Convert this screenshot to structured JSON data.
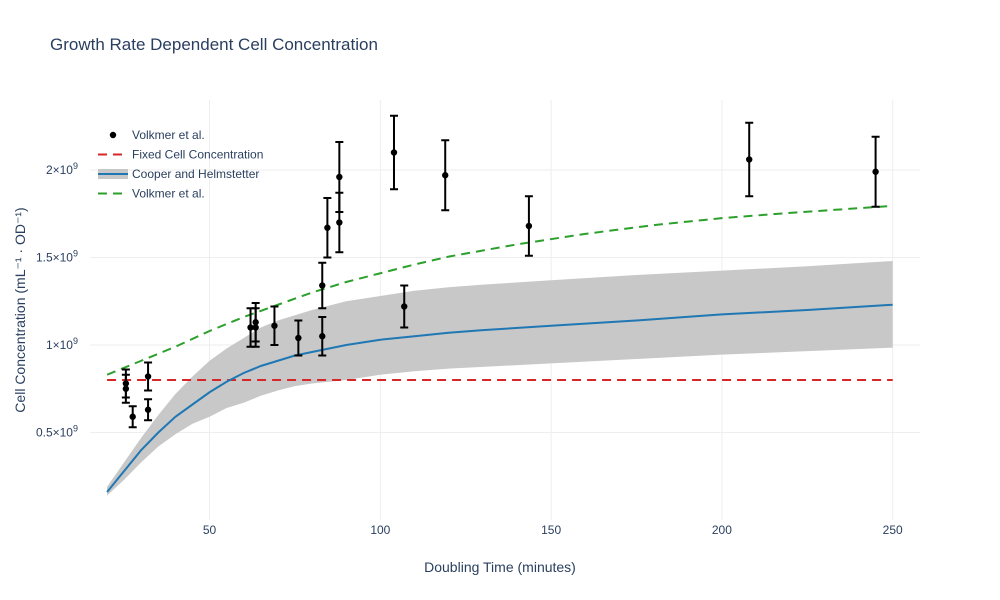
{
  "chart_data": {
    "type": "scatter",
    "title": "Growth Rate Dependent Cell Concentration",
    "xlabel": "Doubling Time (minutes)",
    "ylabel": "Cell Concentration (mL⁻¹ · OD⁻¹)",
    "xlim": [
      15,
      258
    ],
    "ylim": [
      0,
      2400000000.0
    ],
    "grid": true,
    "legend_position": "top-left",
    "x_ticks": [
      {
        "value": 50,
        "label": "50"
      },
      {
        "value": 100,
        "label": "100"
      },
      {
        "value": 150,
        "label": "150"
      },
      {
        "value": 200,
        "label": "200"
      },
      {
        "value": 250,
        "label": "250"
      }
    ],
    "y_ticks": [
      {
        "value": 500000000.0,
        "base": "0.5×10",
        "exp": "9"
      },
      {
        "value": 1000000000.0,
        "base": "1×10",
        "exp": "9"
      },
      {
        "value": 1500000000.0,
        "base": "1.5×10",
        "exp": "9"
      },
      {
        "value": 2000000000.0,
        "base": "2×10",
        "exp": "9"
      }
    ],
    "legend": [
      {
        "label": "Volkmer et al.",
        "kind": "marker"
      },
      {
        "label": "Fixed Cell Concentration",
        "kind": "dash-red"
      },
      {
        "label": "Cooper and Helmstetter",
        "kind": "band"
      },
      {
        "label": "Volkmer et al.",
        "kind": "dash-green"
      }
    ],
    "colors": {
      "markers": "#000000",
      "fixed": "#d62728",
      "cooper_line": "#1f77b4",
      "cooper_band": "#c8c8c8",
      "volkmer_fit": "#2ca02c",
      "grid": "#eeeeee",
      "text": "#2a3f5f"
    },
    "series": [
      {
        "name": "Volkmer et al.",
        "kind": "scatter_errorbars",
        "points": [
          {
            "x": 25.5,
            "y": 750000000.0,
            "err": 80000000.0
          },
          {
            "x": 25.5,
            "y": 780000000.0,
            "err": 80000000.0
          },
          {
            "x": 27.5,
            "y": 590000000.0,
            "err": 60000000.0
          },
          {
            "x": 32.0,
            "y": 630000000.0,
            "err": 60000000.0
          },
          {
            "x": 32.0,
            "y": 820000000.0,
            "err": 80000000.0
          },
          {
            "x": 62.0,
            "y": 1100000000.0,
            "err": 110000000.0
          },
          {
            "x": 63.5,
            "y": 1100000000.0,
            "err": 110000000.0
          },
          {
            "x": 63.5,
            "y": 1130000000.0,
            "err": 110000000.0
          },
          {
            "x": 69.0,
            "y": 1110000000.0,
            "err": 110000000.0
          },
          {
            "x": 76.0,
            "y": 1040000000.0,
            "err": 100000000.0
          },
          {
            "x": 83.0,
            "y": 1050000000.0,
            "err": 110000000.0
          },
          {
            "x": 83.0,
            "y": 1340000000.0,
            "err": 130000000.0
          },
          {
            "x": 84.5,
            "y": 1670000000.0,
            "err": 170000000.0
          },
          {
            "x": 88.0,
            "y": 1700000000.0,
            "err": 170000000.0
          },
          {
            "x": 88.0,
            "y": 1960000000.0,
            "err": 200000000.0
          },
          {
            "x": 104.0,
            "y": 2100000000.0,
            "err": 210000000.0
          },
          {
            "x": 107.0,
            "y": 1220000000.0,
            "err": 120000000.0
          },
          {
            "x": 119.0,
            "y": 1970000000.0,
            "err": 200000000.0
          },
          {
            "x": 143.5,
            "y": 1680000000.0,
            "err": 170000000.0
          },
          {
            "x": 208.0,
            "y": 2060000000.0,
            "err": 210000000.0
          },
          {
            "x": 245.0,
            "y": 1990000000.0,
            "err": 200000000.0
          }
        ]
      },
      {
        "name": "Fixed Cell Concentration",
        "kind": "line",
        "x": [
          20,
          250
        ],
        "y": [
          800000000.0,
          800000000.0
        ]
      },
      {
        "name": "Cooper and Helmstetter",
        "kind": "line_band",
        "x": [
          20,
          25,
          30,
          35,
          40,
          45,
          50,
          55,
          60,
          65,
          70,
          75,
          80,
          90,
          100,
          110,
          120,
          130,
          150,
          175,
          200,
          225,
          250
        ],
        "y": [
          160000000.0,
          280000000.0,
          400000000.0,
          500000000.0,
          590000000.0,
          660000000.0,
          730000000.0,
          790000000.0,
          840000000.0,
          880000000.0,
          910000000.0,
          940000000.0,
          960000000.0,
          1000000000.0,
          1030000000.0,
          1050000000.0,
          1070000000.0,
          1085000000.0,
          1110000000.0,
          1140000000.0,
          1175000000.0,
          1200000000.0,
          1230000000.0
        ],
        "upper": [
          190000000.0,
          330000000.0,
          470000000.0,
          600000000.0,
          720000000.0,
          820000000.0,
          910000000.0,
          980000000.0,
          1040000000.0,
          1100000000.0,
          1140000000.0,
          1170000000.0,
          1200000000.0,
          1250000000.0,
          1280000000.0,
          1310000000.0,
          1330000000.0,
          1345000000.0,
          1370000000.0,
          1400000000.0,
          1425000000.0,
          1450000000.0,
          1480000000.0
        ],
        "lower": [
          140000000.0,
          230000000.0,
          330000000.0,
          420000000.0,
          490000000.0,
          550000000.0,
          590000000.0,
          640000000.0,
          670000000.0,
          710000000.0,
          740000000.0,
          765000000.0,
          780000000.0,
          800000000.0,
          830000000.0,
          850000000.0,
          865000000.0,
          875000000.0,
          895000000.0,
          920000000.0,
          945000000.0,
          965000000.0,
          985000000.0
        ]
      },
      {
        "name": "Volkmer et al.",
        "kind": "line",
        "x": [
          20,
          30,
          40,
          50,
          60,
          70,
          80,
          90,
          100,
          110,
          120,
          140,
          160,
          180,
          200,
          220,
          250
        ],
        "y": [
          830000000.0,
          910000000.0,
          990000000.0,
          1080000000.0,
          1160000000.0,
          1230000000.0,
          1300000000.0,
          1360000000.0,
          1410000000.0,
          1460000000.0,
          1505000000.0,
          1575000000.0,
          1635000000.0,
          1685000000.0,
          1725000000.0,
          1755000000.0,
          1795000000.0
        ]
      }
    ]
  }
}
